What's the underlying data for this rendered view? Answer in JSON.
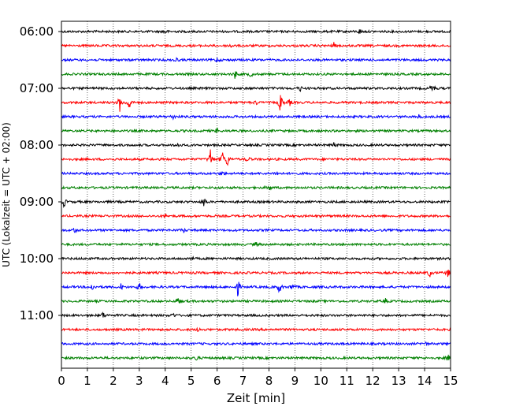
{
  "chart_data": {
    "type": "line",
    "title": "",
    "xlabel": "Zeit  [min]",
    "ylabel": "UTC (Lokalzeit = UTC + 02:00)",
    "xlim": [
      0,
      15
    ],
    "x_ticks": [
      0,
      1,
      2,
      3,
      4,
      5,
      6,
      7,
      8,
      9,
      10,
      11,
      12,
      13,
      14,
      15
    ],
    "y_ticks": [
      {
        "label": "06:00",
        "row": 0
      },
      {
        "label": "07:00",
        "row": 4
      },
      {
        "label": "08:00",
        "row": 8
      },
      {
        "label": "09:00",
        "row": 12
      },
      {
        "label": "10:00",
        "row": 16
      },
      {
        "label": "11:00",
        "row": 20
      }
    ],
    "grid": "vertical-dotted",
    "colors": [
      "#000000",
      "#ff0000",
      "#0000ff",
      "#008000"
    ],
    "rows": [
      {
        "start": "06:00",
        "color": "#000000",
        "events": [
          {
            "t": 4.0,
            "a": 0.3
          },
          {
            "t": 11.5,
            "a": 0.3
          }
        ]
      },
      {
        "start": "06:15",
        "color": "#ff0000",
        "events": [
          {
            "t": 6.5,
            "a": 0.3
          },
          {
            "t": 10.5,
            "a": 0.3
          }
        ]
      },
      {
        "start": "06:30",
        "color": "#0000ff",
        "events": [
          {
            "t": 4.4,
            "a": 0.35
          },
          {
            "t": 6.0,
            "a": 0.3
          }
        ]
      },
      {
        "start": "06:45",
        "color": "#008000",
        "events": [
          {
            "t": 6.7,
            "a": 0.6
          },
          {
            "t": 7.3,
            "a": 0.35
          }
        ]
      },
      {
        "start": "07:00",
        "color": "#000000",
        "events": [
          {
            "t": 9.2,
            "a": 0.35
          },
          {
            "t": 14.3,
            "a": 0.8
          }
        ]
      },
      {
        "start": "07:15",
        "color": "#ff0000",
        "events": [
          {
            "t": 2.25,
            "a": 1.0
          },
          {
            "t": 2.6,
            "a": 1.2
          },
          {
            "t": 7.5,
            "a": 0.3
          },
          {
            "t": 8.45,
            "a": 1.5
          },
          {
            "t": 8.8,
            "a": 0.4
          }
        ]
      },
      {
        "start": "07:30",
        "color": "#0000ff",
        "events": [
          {
            "t": 4.3,
            "a": 0.35
          },
          {
            "t": 13.8,
            "a": 0.3
          }
        ]
      },
      {
        "start": "07:45",
        "color": "#008000",
        "events": [
          {
            "t": 6.0,
            "a": 0.3
          }
        ]
      },
      {
        "start": "08:00",
        "color": "#000000",
        "events": [
          {
            "t": 4.5,
            "a": 0.3
          },
          {
            "t": 10.5,
            "a": 0.3
          }
        ]
      },
      {
        "start": "08:15",
        "color": "#ff0000",
        "events": [
          {
            "t": 5.75,
            "a": 1.5
          },
          {
            "t": 6.2,
            "a": 1.1
          },
          {
            "t": 6.4,
            "a": 0.9
          },
          {
            "t": 7.2,
            "a": 0.4
          }
        ]
      },
      {
        "start": "08:30",
        "color": "#0000ff",
        "events": [
          {
            "t": 6.2,
            "a": 0.3
          },
          {
            "t": 8.3,
            "a": 0.35
          }
        ]
      },
      {
        "start": "08:45",
        "color": "#008000",
        "events": [
          {
            "t": 8.0,
            "a": 0.45
          }
        ]
      },
      {
        "start": "09:00",
        "color": "#000000",
        "events": [
          {
            "t": 0.1,
            "a": 0.7
          },
          {
            "t": 5.5,
            "a": 0.7
          }
        ]
      },
      {
        "start": "09:15",
        "color": "#ff0000",
        "events": [
          {
            "t": 4.0,
            "a": 0.3
          }
        ]
      },
      {
        "start": "09:30",
        "color": "#0000ff",
        "events": [
          {
            "t": 0.5,
            "a": 0.35
          },
          {
            "t": 4.7,
            "a": 0.3
          }
        ]
      },
      {
        "start": "09:45",
        "color": "#008000",
        "events": [
          {
            "t": 7.5,
            "a": 0.3
          }
        ]
      },
      {
        "start": "10:00",
        "color": "#000000",
        "events": [
          {
            "t": 5.0,
            "a": 0.3
          }
        ]
      },
      {
        "start": "10:15",
        "color": "#ff0000",
        "events": [
          {
            "t": 14.2,
            "a": 0.55
          },
          {
            "t": 14.9,
            "a": 0.5
          }
        ]
      },
      {
        "start": "10:30",
        "color": "#0000ff",
        "events": [
          {
            "t": 1.2,
            "a": 0.5
          },
          {
            "t": 2.3,
            "a": 0.4
          },
          {
            "t": 3.0,
            "a": 0.5
          },
          {
            "t": 6.8,
            "a": 1.1
          },
          {
            "t": 8.4,
            "a": 0.8
          },
          {
            "t": 8.9,
            "a": 0.5
          }
        ]
      },
      {
        "start": "10:45",
        "color": "#008000",
        "events": [
          {
            "t": 4.5,
            "a": 0.55
          },
          {
            "t": 12.5,
            "a": 0.3
          }
        ]
      },
      {
        "start": "11:00",
        "color": "#000000",
        "events": [
          {
            "t": 1.6,
            "a": 0.4
          },
          {
            "t": 4.3,
            "a": 0.3
          }
        ]
      },
      {
        "start": "11:15",
        "color": "#ff0000",
        "events": [
          {
            "t": 5.3,
            "a": 0.3
          }
        ]
      },
      {
        "start": "11:30",
        "color": "#0000ff",
        "events": [
          {
            "t": 14.0,
            "a": 0.35
          }
        ]
      },
      {
        "start": "11:45",
        "color": "#008000",
        "events": [
          {
            "t": 5.2,
            "a": 0.35
          },
          {
            "t": 14.9,
            "a": 0.4
          }
        ]
      }
    ]
  }
}
